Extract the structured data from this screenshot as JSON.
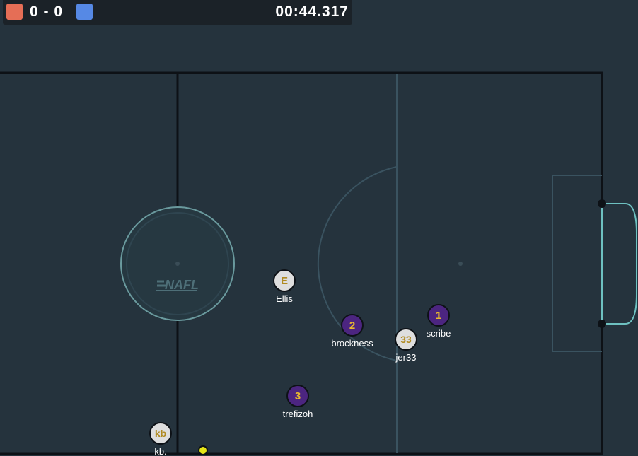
{
  "scoreboard": {
    "score_text": "0 - 0",
    "red_score": 0,
    "blue_score": 0,
    "timer": "00:44.317",
    "red_color": "#e56e56",
    "blue_color": "#5689e5"
  },
  "field": {
    "background": "#25333d",
    "line_color": "#0d1116",
    "circle_color": "#6a9a9e",
    "goal_color": "#6ec1c1",
    "logo_text": "NAFL"
  },
  "players": [
    {
      "id": "ellis",
      "avatar": "E",
      "name": "Ellis",
      "team": "white"
    },
    {
      "id": "brockness",
      "avatar": "2",
      "name": "brockness",
      "team": "purple"
    },
    {
      "id": "scribe",
      "avatar": "1",
      "name": "scribe",
      "team": "purple"
    },
    {
      "id": "jer33",
      "avatar": "33",
      "name": "jer33",
      "team": "white"
    },
    {
      "id": "trefizoh",
      "avatar": "3",
      "name": "trefizoh",
      "team": "purple"
    },
    {
      "id": "kb",
      "avatar": "kb",
      "name": "kb.",
      "team": "white"
    }
  ],
  "team_colors": {
    "purple": {
      "fill": "#4c2580",
      "text": "#e8b930"
    },
    "white": {
      "fill": "#dedede",
      "text": "#b08a20"
    }
  },
  "ball": {
    "color": "#e5e517"
  }
}
